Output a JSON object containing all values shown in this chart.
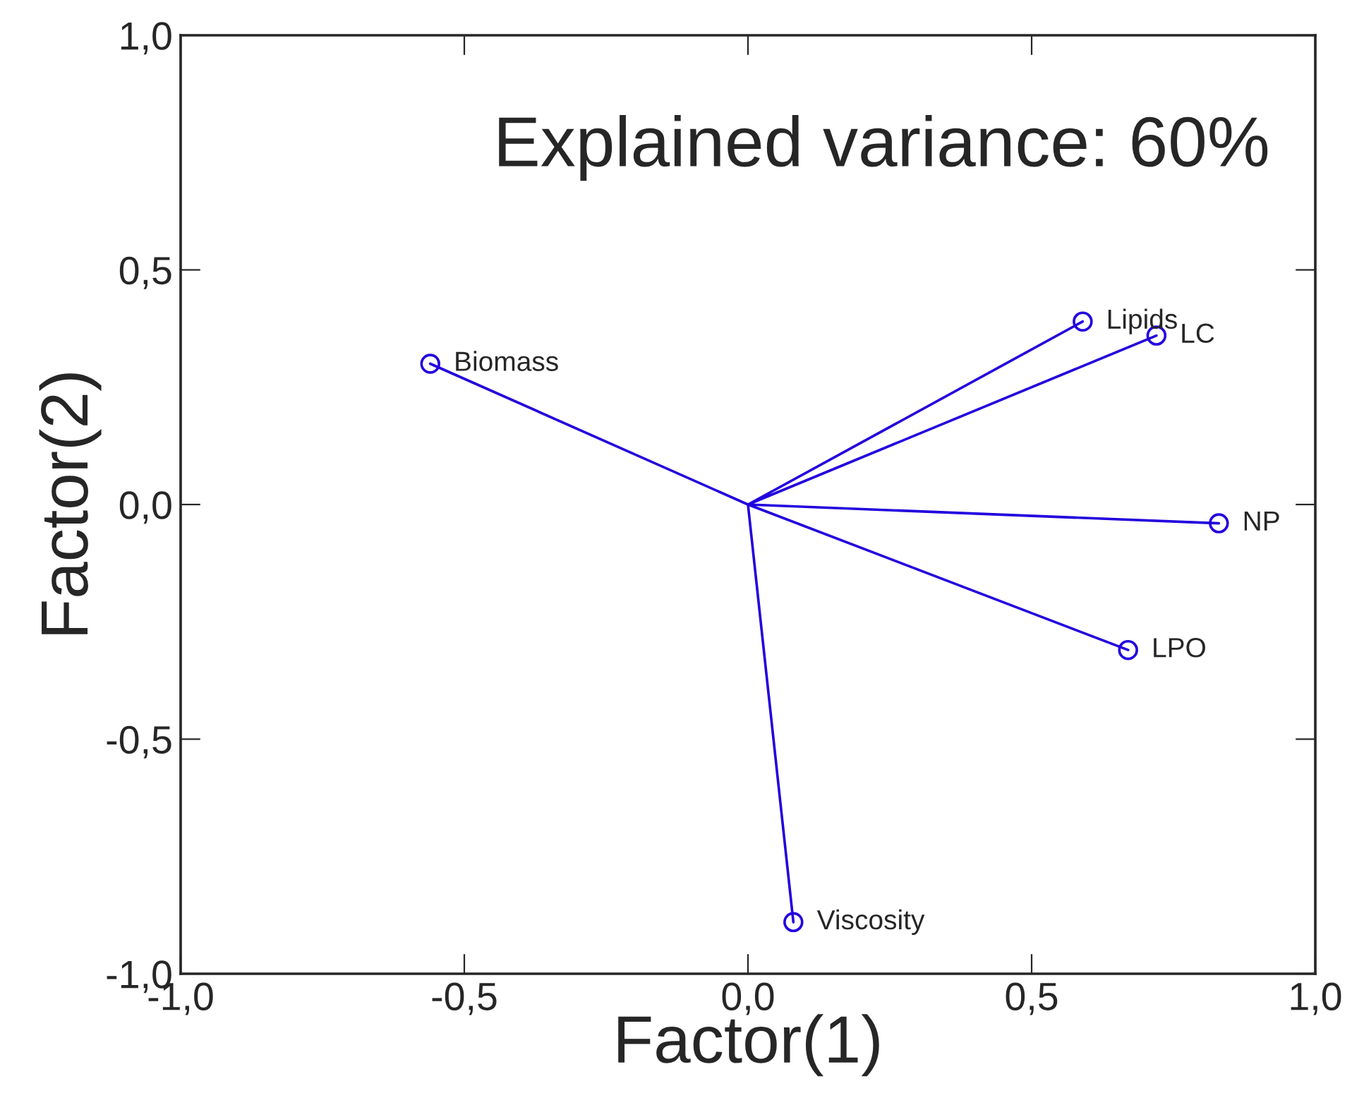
{
  "chart_data": {
    "type": "scatter",
    "xlabel": "Factor(1)",
    "ylabel": "Factor(2)",
    "xlim": [
      -1.0,
      1.0
    ],
    "ylim": [
      -1.0,
      1.0
    ],
    "xticks": [
      {
        "value": -1.0,
        "label": "-1,0"
      },
      {
        "value": -0.5,
        "label": "-0,5"
      },
      {
        "value": 0.0,
        "label": "0,0"
      },
      {
        "value": 0.5,
        "label": "0,5"
      },
      {
        "value": 1.0,
        "label": "1,0"
      }
    ],
    "yticks": [
      {
        "value": -1.0,
        "label": "-1,0"
      },
      {
        "value": -0.5,
        "label": "-0,5"
      },
      {
        "value": 0.0,
        "label": "0,0"
      },
      {
        "value": 0.5,
        "label": "0,5"
      },
      {
        "value": 1.0,
        "label": "1,0"
      }
    ],
    "grid": false,
    "legend": false,
    "series": [
      {
        "type": "line",
        "color": "#2200dd",
        "marker": "none",
        "x": [
          -0.56,
          0,
          0.59,
          0,
          0.72,
          0,
          0.83,
          0,
          0.67,
          0,
          0.08
        ],
        "values": [
          0.3,
          0,
          0.39,
          0,
          0.36,
          0,
          -0.04,
          0,
          -0.31,
          0,
          -0.89
        ]
      },
      {
        "color": "#2200dd",
        "marker": "circle",
        "x": [
          -0.56,
          0.59,
          0.72,
          0.83,
          0.67,
          0.08
        ],
        "values": [
          0.3,
          0.39,
          0.36,
          -0.04,
          -0.31,
          -0.89
        ]
      }
    ],
    "annotations": [
      "Explained variance: 60%",
      {
        "text": "Biomass",
        "x": -0.56,
        "y": 0.3
      },
      {
        "text": "Lipids",
        "x": 0.59,
        "y": 0.39
      },
      {
        "text": "LC",
        "x": 0.72,
        "y": 0.36
      },
      {
        "text": "NP",
        "x": 0.83,
        "y": -0.04
      },
      {
        "text": "LPO",
        "x": 0.67,
        "y": -0.31
      },
      {
        "text": "Viscosity",
        "x": 0.08,
        "y": -0.89
      }
    ]
  }
}
